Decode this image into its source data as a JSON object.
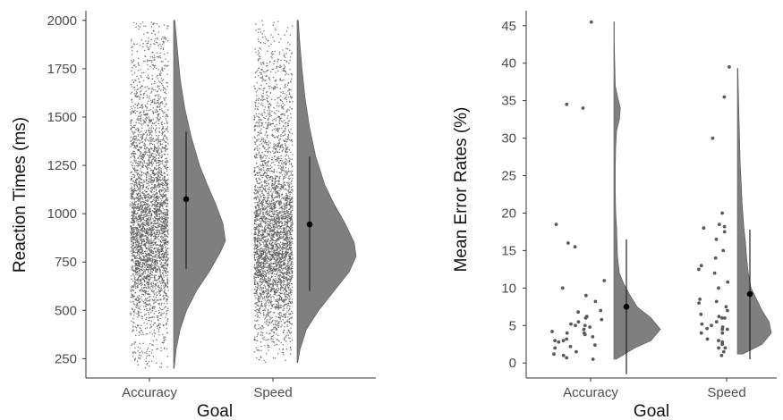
{
  "chart_data": [
    {
      "type": "raincloud",
      "title": "",
      "xlabel": "Goal",
      "ylabel": "Reaction Times (ms)",
      "categories": [
        "Accuracy",
        "Speed"
      ],
      "ylim": [
        150,
        2050
      ],
      "yticks": [
        250,
        500,
        750,
        1000,
        1250,
        1500,
        1750,
        2000
      ],
      "grid": false,
      "colors": {
        "fill": "#7f7f7f",
        "points": "#595959",
        "line": "#222222"
      },
      "groups": [
        {
          "name": "Accuracy",
          "mean": 1075,
          "ci_low": 715,
          "ci_high": 1425,
          "raw_range": [
            200,
            2000
          ],
          "density": [
            [
              200,
              0.01
            ],
            [
              300,
              0.04
            ],
            [
              400,
              0.1
            ],
            [
              500,
              0.2
            ],
            [
              600,
              0.35
            ],
            [
              700,
              0.55
            ],
            [
              800,
              0.72
            ],
            [
              860,
              0.8
            ],
            [
              950,
              0.76
            ],
            [
              1050,
              0.65
            ],
            [
              1150,
              0.52
            ],
            [
              1250,
              0.4
            ],
            [
              1400,
              0.27
            ],
            [
              1550,
              0.17
            ],
            [
              1700,
              0.1
            ],
            [
              1850,
              0.06
            ],
            [
              2000,
              0.02
            ]
          ]
        },
        {
          "name": "Speed",
          "mean": 945,
          "ci_low": 600,
          "ci_high": 1295,
          "raw_range": [
            230,
            2000
          ],
          "density": [
            [
              230,
              0.01
            ],
            [
              300,
              0.05
            ],
            [
              400,
              0.15
            ],
            [
              500,
              0.35
            ],
            [
              600,
              0.6
            ],
            [
              700,
              0.85
            ],
            [
              780,
              0.96
            ],
            [
              850,
              0.93
            ],
            [
              950,
              0.78
            ],
            [
              1050,
              0.6
            ],
            [
              1150,
              0.45
            ],
            [
              1300,
              0.3
            ],
            [
              1450,
              0.2
            ],
            [
              1600,
              0.13
            ],
            [
              1750,
              0.08
            ],
            [
              1900,
              0.04
            ],
            [
              2000,
              0.02
            ]
          ]
        }
      ]
    },
    {
      "type": "raincloud",
      "title": "",
      "xlabel": "Goal",
      "ylabel": "Mean Error Rates (%)",
      "categories": [
        "Accuracy",
        "Speed"
      ],
      "ylim": [
        -2,
        47
      ],
      "yticks": [
        0,
        5,
        10,
        15,
        20,
        25,
        30,
        35,
        40,
        45
      ],
      "grid": false,
      "colors": {
        "fill": "#7f7f7f",
        "points": "#595959",
        "line": "#222222"
      },
      "groups": [
        {
          "name": "Accuracy",
          "mean": 7.5,
          "ci_low": -1.5,
          "ci_high": 16.5,
          "density": [
            [
              0.5,
              0.05
            ],
            [
              2,
              0.45
            ],
            [
              3,
              0.8
            ],
            [
              4.5,
              1.0
            ],
            [
              6,
              0.8
            ],
            [
              7.5,
              0.5
            ],
            [
              9,
              0.35
            ],
            [
              10.5,
              0.22
            ],
            [
              12,
              0.12
            ],
            [
              14,
              0.08
            ],
            [
              16,
              0.07
            ],
            [
              18,
              0.06
            ],
            [
              20,
              0.04
            ],
            [
              23,
              0.03
            ],
            [
              26,
              0.03
            ],
            [
              29,
              0.04
            ],
            [
              31,
              0.06
            ],
            [
              32.5,
              0.12
            ],
            [
              34,
              0.14
            ],
            [
              35.5,
              0.08
            ],
            [
              37,
              0.03
            ],
            [
              40,
              0.02
            ],
            [
              43,
              0.01
            ],
            [
              45.5,
              0.01
            ]
          ],
          "points": [
            0.5,
            0.7,
            1,
            1.2,
            1.5,
            2,
            2.2,
            2.4,
            2.8,
            3,
            3,
            3.2,
            3.5,
            3.8,
            4,
            4,
            4.2,
            4.5,
            4.8,
            5,
            5,
            5.2,
            5.5,
            5.8,
            6,
            6.2,
            6.8,
            7,
            8.2,
            9,
            10,
            11,
            15.5,
            16,
            18.5,
            34,
            34.5,
            45.5
          ]
        },
        {
          "name": "Speed",
          "mean": 9.2,
          "ci_low": 0.5,
          "ci_high": 17.8,
          "density": [
            [
              1.2,
              0.1
            ],
            [
              2.5,
              0.45
            ],
            [
              4,
              0.62
            ],
            [
              5.5,
              0.58
            ],
            [
              7,
              0.45
            ],
            [
              8.5,
              0.35
            ],
            [
              10,
              0.25
            ],
            [
              12,
              0.2
            ],
            [
              14,
              0.17
            ],
            [
              16,
              0.15
            ],
            [
              18,
              0.12
            ],
            [
              21,
              0.09
            ],
            [
              24,
              0.07
            ],
            [
              27,
              0.05
            ],
            [
              30,
              0.04
            ],
            [
              33,
              0.03
            ],
            [
              36,
              0.02
            ],
            [
              39.3,
              0.01
            ]
          ],
          "points": [
            1,
            1.5,
            2,
            2,
            2.5,
            2.8,
            3,
            3.2,
            4,
            4,
            4.5,
            4.5,
            4.6,
            4.8,
            5,
            5.2,
            5.5,
            6,
            6,
            6.2,
            6.5,
            7,
            7.5,
            8,
            8.2,
            8.5,
            10,
            10.8,
            12,
            12.5,
            13,
            14,
            15,
            16.5,
            17.5,
            18,
            18.2,
            18.5,
            20,
            30,
            35.5,
            39.5
          ]
        }
      ]
    }
  ]
}
